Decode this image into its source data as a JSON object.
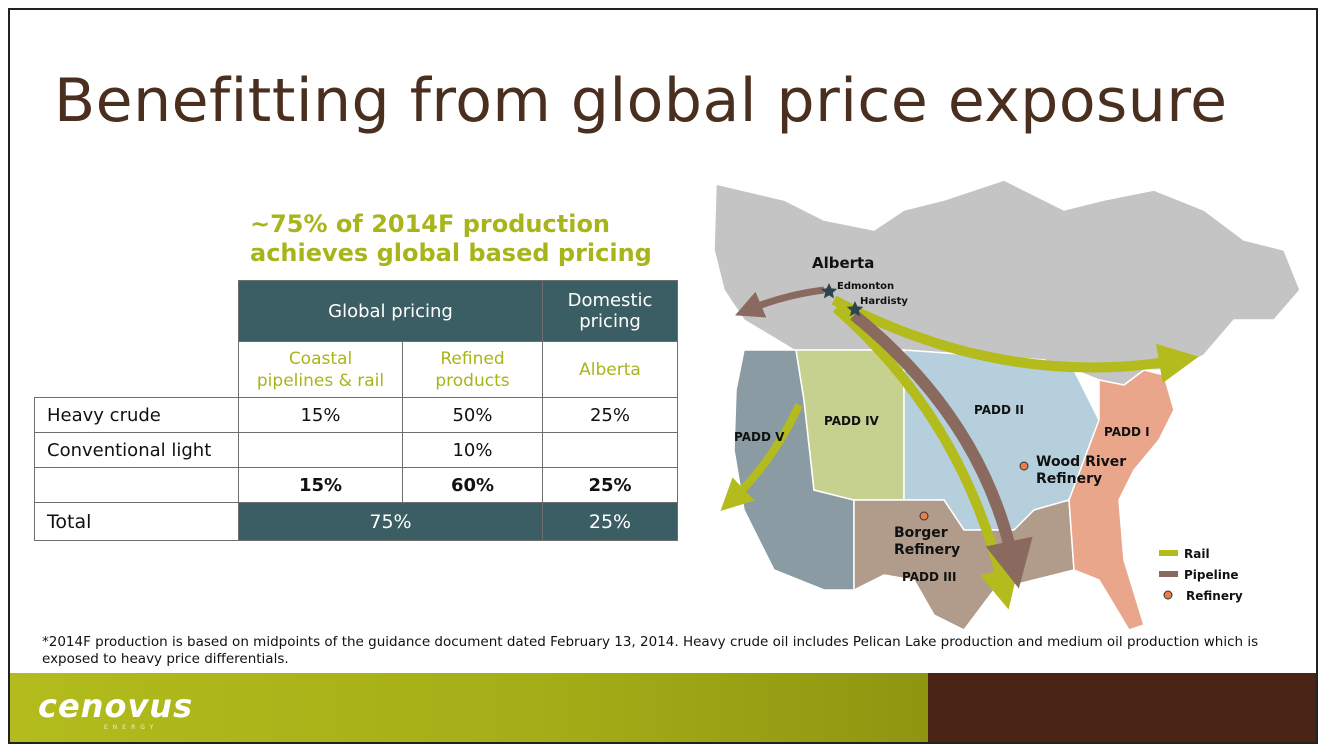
{
  "slide": {
    "title": "Benefitting from global price exposure",
    "subtitle_line1": "~75% of 2014F production",
    "subtitle_line2": "achieves global based pricing"
  },
  "table": {
    "header_global": "Global pricing",
    "header_domestic_line1": "Domestic",
    "header_domestic_line2": "pricing",
    "sub_coastal_line1": "Coastal",
    "sub_coastal_line2": "pipelines & rail",
    "sub_refined_line1": "Refined",
    "sub_refined_line2": "products",
    "sub_alberta": "Alberta",
    "rows": [
      {
        "label": "Heavy crude",
        "coastal": "15%",
        "refined": "50%",
        "alberta": "25%"
      },
      {
        "label": "Conventional light",
        "coastal": "",
        "refined": "10%",
        "alberta": ""
      },
      {
        "label": "",
        "coastal": "15%",
        "refined": "60%",
        "alberta": "25%"
      }
    ],
    "total_label": "Total",
    "total_global": "75%",
    "total_domestic": "25%"
  },
  "map": {
    "labels": {
      "alberta": "Alberta",
      "edmonton": "Edmonton",
      "hardisty": "Hardisty",
      "padd_i": "PADD I",
      "padd_ii": "PADD II",
      "padd_iii": "PADD III",
      "padd_iv": "PADD IV",
      "padd_v": "PADD V",
      "wood_river_line1": "Wood River",
      "wood_river_line2": "Refinery",
      "borger_line1": "Borger",
      "borger_line2": "Refinery"
    },
    "legend": {
      "rail": "Rail",
      "pipeline": "Pipeline",
      "refinery": "Refinery"
    },
    "colors": {
      "canada": "#c4c4c4",
      "padd_i": "#e9a68a",
      "padd_ii": "#b6cfdc",
      "padd_iii": "#b19b8a",
      "padd_iv": "#c7d18f",
      "padd_v": "#8a9ba3",
      "rail": "#b3bc1c",
      "pipeline": "#8a6a5e",
      "refinery": "#e87f4a"
    }
  },
  "footnote": "*2014F production is based on midpoints of the guidance document dated February 13, 2014. Heavy crude oil includes Pelican Lake production and medium oil production which is exposed to heavy price differentials.",
  "footer": {
    "logo": "cenovus",
    "logo_sub": "ENERGY"
  },
  "theme": {
    "header_teal": "#3b5e64",
    "accent_green": "#a8b51a",
    "title_brown": "#4a2e1e"
  }
}
